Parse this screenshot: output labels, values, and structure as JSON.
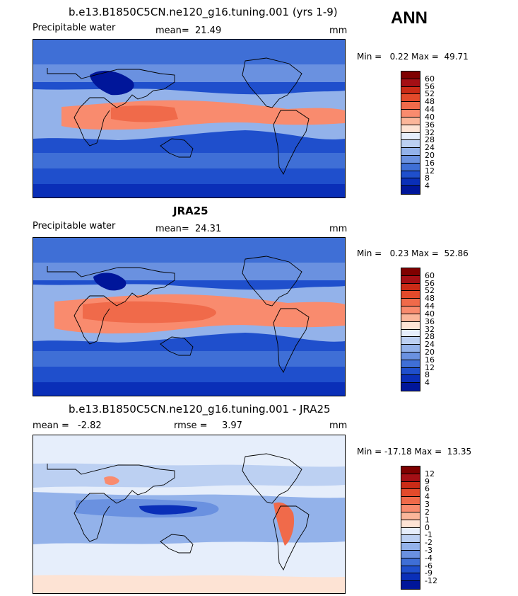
{
  "season": "ANN",
  "chart_data": [
    {
      "type": "heatmap",
      "title": "b.e13.B1850C5CN.ne120_g16.tuning.001 (yrs 1-9)",
      "variable": "Precipitable water",
      "mean_label": "mean=",
      "mean_value": "21.49",
      "units": "mm",
      "min_max": "Min =   0.22 Max =  49.71",
      "colorbar_ticks": [
        "60",
        "56",
        "52",
        "48",
        "44",
        "40",
        "36",
        "32",
        "28",
        "24",
        "20",
        "16",
        "12",
        "8",
        "4"
      ],
      "colorbar_colors": [
        "#7f0000",
        "#a50f15",
        "#cb2b17",
        "#e34a2b",
        "#f06a4a",
        "#f98b6e",
        "#fbb69a",
        "#fde3d4",
        "#e6eefb",
        "#bcd0f2",
        "#93b2ea",
        "#6a91e0",
        "#3f6fd6",
        "#1f4fcc",
        "#0a2fb8",
        "#00169a"
      ],
      "xlim": [
        0,
        360
      ],
      "ylim": [
        -90,
        90
      ]
    },
    {
      "type": "heatmap",
      "title": "JRA25",
      "variable": "Precipitable water",
      "mean_label": "mean=",
      "mean_value": "24.31",
      "units": "mm",
      "min_max": "Min =   0.23 Max =  52.86",
      "colorbar_ticks": [
        "60",
        "56",
        "52",
        "48",
        "44",
        "40",
        "36",
        "32",
        "28",
        "24",
        "20",
        "16",
        "12",
        "8",
        "4"
      ],
      "colorbar_colors": [
        "#7f0000",
        "#a50f15",
        "#cb2b17",
        "#e34a2b",
        "#f06a4a",
        "#f98b6e",
        "#fbb69a",
        "#fde3d4",
        "#e6eefb",
        "#bcd0f2",
        "#93b2ea",
        "#6a91e0",
        "#3f6fd6",
        "#1f4fcc",
        "#0a2fb8",
        "#00169a"
      ],
      "xlim": [
        0,
        360
      ],
      "ylim": [
        -90,
        90
      ]
    },
    {
      "type": "heatmap",
      "title": "b.e13.B1850C5CN.ne120_g16.tuning.001 - JRA25",
      "mean_label": "mean =",
      "mean_value": "-2.82",
      "rmse_label": "rmse =",
      "rmse_value": "3.97",
      "units": "mm",
      "min_max": "Min = -17.18 Max =  13.35",
      "colorbar_ticks": [
        "12",
        "9",
        "6",
        "4",
        "3",
        "2",
        "1",
        "0",
        "-1",
        "-2",
        "-3",
        "-4",
        "-6",
        "-9",
        "-12"
      ],
      "colorbar_colors": [
        "#7f0000",
        "#a50f15",
        "#cb2b17",
        "#e34a2b",
        "#f06a4a",
        "#f98b6e",
        "#fbb69a",
        "#fde3d4",
        "#e6eefb",
        "#bcd0f2",
        "#93b2ea",
        "#6a91e0",
        "#3f6fd6",
        "#1f4fcc",
        "#0a2fb8",
        "#00169a"
      ],
      "xlim": [
        0,
        360
      ],
      "ylim": [
        -90,
        90
      ]
    }
  ]
}
